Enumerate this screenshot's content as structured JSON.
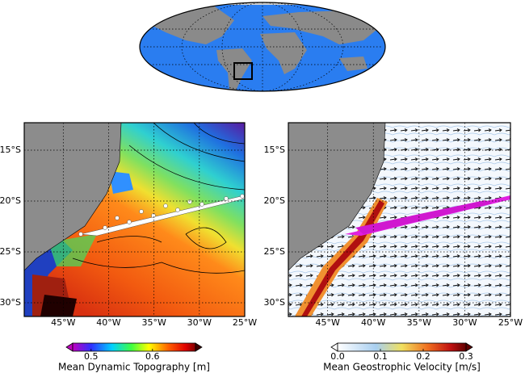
{
  "maps": [
    {
      "xlim": [
        -49.3,
        -25
      ],
      "ylim": [
        -31.35,
        -12.3
      ],
      "xticks": [
        {
          "value": -45,
          "label": "45°W"
        },
        {
          "value": -40,
          "label": "40°W"
        },
        {
          "value": -35,
          "label": "35°W"
        },
        {
          "value": -30,
          "label": "30°W"
        },
        {
          "value": -25,
          "label": "25°W"
        }
      ],
      "yticks": [
        {
          "value": -15,
          "label": "15°S"
        },
        {
          "value": -20,
          "label": "20°S"
        },
        {
          "value": -25,
          "label": "25°S"
        },
        {
          "value": -30,
          "label": "30°S"
        }
      ],
      "colorbar": {
        "label": "Mean Dynamic Topography [m]",
        "lim": [
          0.47,
          0.67
        ],
        "ticks": [
          0.5,
          0.6
        ]
      }
    },
    {
      "xlim": [
        -49.3,
        -25
      ],
      "ylim": [
        -31.35,
        -12.3
      ],
      "xticks": [
        {
          "value": -45,
          "label": "45°W"
        },
        {
          "value": -40,
          "label": "40°W"
        },
        {
          "value": -35,
          "label": "35°W"
        },
        {
          "value": -30,
          "label": "30°W"
        },
        {
          "value": -25,
          "label": "25°W"
        }
      ],
      "yticks": [
        {
          "value": -15,
          "label": "15°S"
        },
        {
          "value": -20,
          "label": "20°S"
        },
        {
          "value": -25,
          "label": "25°S"
        },
        {
          "value": -30,
          "label": "30°S"
        }
      ],
      "colorbar": {
        "label": "Mean Geostrophic Velocity [m/s]",
        "lim": [
          0,
          0.3
        ],
        "ticks": [
          {
            "value": 0,
            "label": "0.0"
          },
          0.1,
          0.2,
          0.3
        ]
      }
    }
  ]
}
